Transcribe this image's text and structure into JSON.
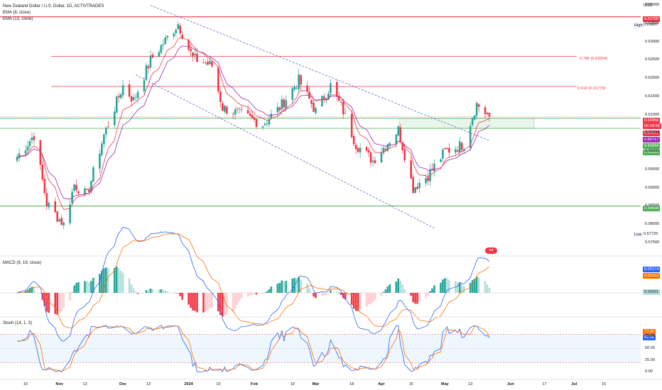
{
  "header": {
    "title": "New Zealand Dollar / U.S. Dollar, 1D, ACTIVTRADES",
    "ema8_label": "EMA (8, close)",
    "ema13_label": "EMA (13, close)",
    "currency": "USD",
    "macd_label": "MACD (9, 19, close)",
    "stoch_label": "Stoch (14, 1, 3)"
  },
  "colors": {
    "up": "#26a69a",
    "down": "#f23645",
    "ema8": "#f23645",
    "ema13": "#9c27b0",
    "macd": "#2962ff",
    "signal": "#ff6d00",
    "stoch_k": "#2962ff",
    "stoch_d": "#ff6d00",
    "level_red": "#f23645",
    "level_green": "#4caf50",
    "channel": "#5b6bc8"
  },
  "chart_data": {
    "type": "candlestick",
    "symbol": "NZDUSD",
    "title": "New Zealand Dollar / U.S. Dollar, 1D, ACTIVTRADES",
    "period_start": "2023-10-12",
    "period_end": "2024-05-22",
    "y_axis": {
      "unit": "USD",
      "range": [
        0.5745,
        0.6405
      ],
      "ticks": [
        "0.64000",
        "0.63500",
        "0.63000",
        "0.62500",
        "0.62000",
        "0.61500",
        "0.61000",
        "0.60500",
        "0.60000",
        "0.59500",
        "0.59000",
        "0.58500",
        "0.58000",
        "0.57500"
      ]
    },
    "x_axis": {
      "ticks": [
        "16",
        "Nov",
        "13",
        "Dec",
        "13",
        "2024",
        "15",
        "Feb",
        "19",
        "Mar",
        "18",
        "Apr",
        "15",
        "May",
        "13",
        "Jun",
        "17",
        "Jul",
        "15"
      ],
      "bold": [
        "Nov",
        "Dec",
        "2024",
        "Feb",
        "Mar",
        "Apr",
        "May",
        "Jun",
        "Jul"
      ]
    },
    "keypoints": [
      {
        "date": "2023-10-12",
        "close": 0.5985
      },
      {
        "date": "2023-10-20",
        "close": 0.6045
      },
      {
        "date": "2023-10-26",
        "close": 0.5858
      },
      {
        "date": "2023-11-03",
        "close": 0.58
      },
      {
        "date": "2023-11-08",
        "close": 0.591
      },
      {
        "date": "2023-11-14",
        "close": 0.588
      },
      {
        "date": "2023-11-22",
        "close": 0.6045
      },
      {
        "date": "2023-12-01",
        "close": 0.618
      },
      {
        "date": "2023-12-06",
        "close": 0.614
      },
      {
        "date": "2023-12-14",
        "close": 0.625
      },
      {
        "date": "2023-12-27",
        "close": 0.635
      },
      {
        "date": "2024-01-03",
        "close": 0.6255
      },
      {
        "date": "2024-01-12",
        "close": 0.6235
      },
      {
        "date": "2024-01-17",
        "close": 0.612
      },
      {
        "date": "2024-01-26",
        "close": 0.61
      },
      {
        "date": "2024-02-05",
        "close": 0.6075
      },
      {
        "date": "2024-02-13",
        "close": 0.612
      },
      {
        "date": "2024-02-22",
        "close": 0.6195
      },
      {
        "date": "2024-03-01",
        "close": 0.611
      },
      {
        "date": "2024-03-08",
        "close": 0.618
      },
      {
        "date": "2024-03-14",
        "close": 0.611
      },
      {
        "date": "2024-03-20",
        "close": 0.602
      },
      {
        "date": "2024-03-28",
        "close": 0.5975
      },
      {
        "date": "2024-04-09",
        "close": 0.606
      },
      {
        "date": "2024-04-16",
        "close": 0.59
      },
      {
        "date": "2024-04-23",
        "close": 0.5935
      },
      {
        "date": "2024-05-01",
        "close": 0.6
      },
      {
        "date": "2024-05-10",
        "close": 0.602
      },
      {
        "date": "2024-05-13",
        "close": 0.608
      },
      {
        "date": "2024-05-16",
        "close": 0.613
      },
      {
        "date": "2024-05-22",
        "close": 0.6095
      }
    ],
    "levels": [
      {
        "name": "High",
        "price": 0.63687,
        "label": "0.63687",
        "color": "#f23645"
      },
      {
        "name": "0.786",
        "price": 0.62604,
        "label": "0.786 (0.62604)",
        "color": "#f23645"
      },
      {
        "name": "0.618",
        "price": 0.61779,
        "label": "0.618 (0.61779)",
        "color": "#f23645"
      },
      {
        "name": "zone_top",
        "price": 0.60911,
        "color": "#4caf50"
      },
      {
        "name": "zone_bottom",
        "price": 0.60633,
        "color": "#4caf50"
      },
      {
        "name": "support",
        "price": 0.58508,
        "color": "#4caf50"
      }
    ],
    "channel": {
      "upper": [
        {
          "date": "2023-12-14",
          "price": 0.64
        },
        {
          "date": "2024-05-22",
          "price": 0.603
        }
      ],
      "lower": [
        {
          "date": "2023-12-07",
          "price": 0.621
        },
        {
          "date": "2024-04-26",
          "price": 0.579
        }
      ]
    },
    "annotations": {
      "high_label": "High",
      "high_value": "0.63687",
      "high_price_tag": "0.63700",
      "low_label": "Low",
      "low_value": "0.57726",
      "last_price": "0.60956",
      "countdown": "06:29:58",
      "ema8_value": "0.60911",
      "ema13_value": "0.60717",
      "zone_tag_1": "0.60694",
      "zone_tag_2": "0.60333",
      "support_tag": "0.58508"
    },
    "macd": {
      "ticks_note": "MACD line, signal line and histogram",
      "macd_value": "0.00174",
      "signal_value": "0.00153",
      "hist_value": "0.00021"
    },
    "stoch": {
      "k_value": "82.06",
      "d_value": "72.26",
      "upper_band": 80,
      "lower_band": 20,
      "ticks": [
        "75.00",
        "50.00",
        "25.00",
        "0.00"
      ]
    }
  }
}
